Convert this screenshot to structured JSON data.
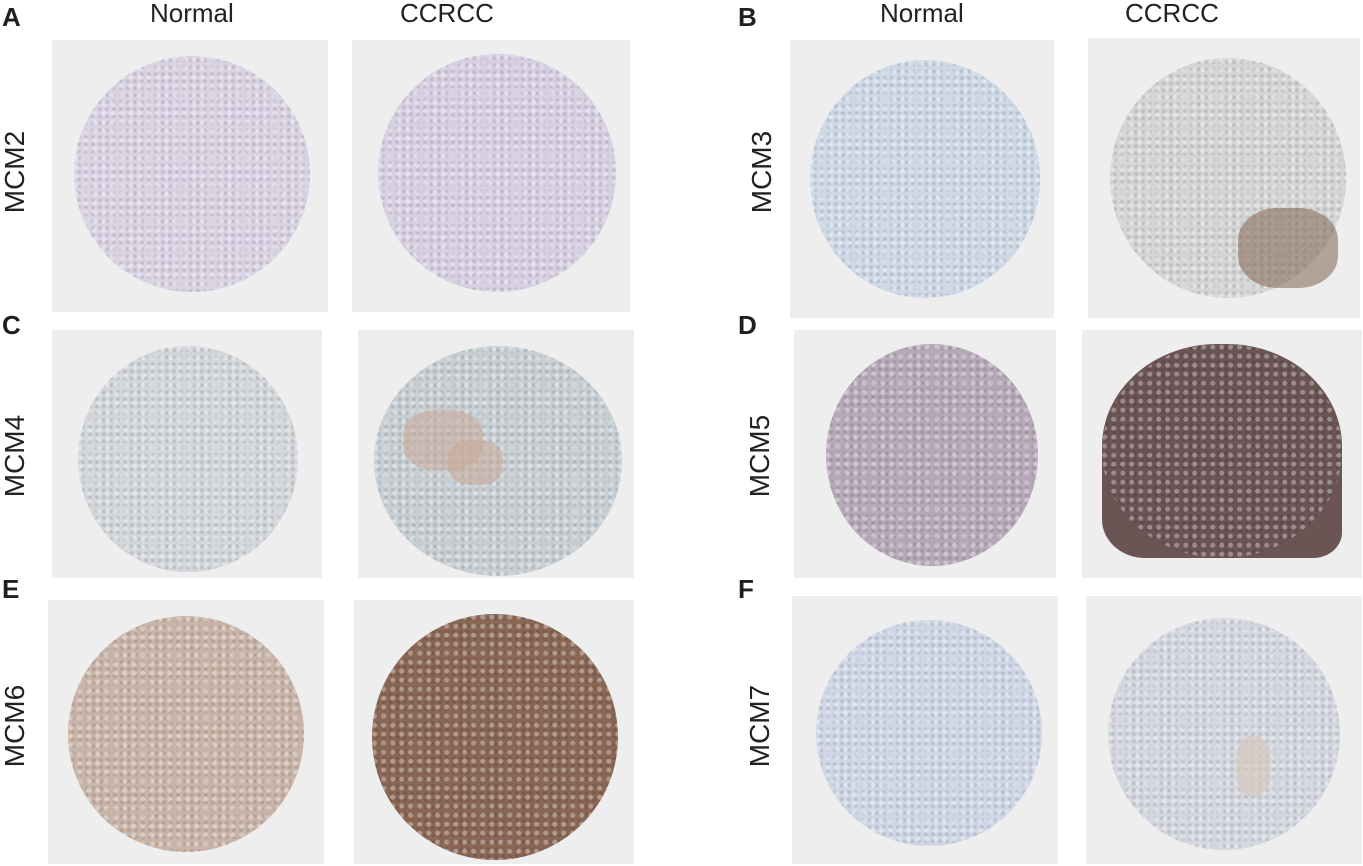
{
  "panels": [
    {
      "letter": "A",
      "marker": "MCM2"
    },
    {
      "letter": "B",
      "marker": "MCM3"
    },
    {
      "letter": "C",
      "marker": "MCM4"
    },
    {
      "letter": "D",
      "marker": "MCM5"
    },
    {
      "letter": "E",
      "marker": "MCM6"
    },
    {
      "letter": "F",
      "marker": "MCM7"
    }
  ],
  "column_headers": {
    "normal": "Normal",
    "tumor": "CCRCC"
  },
  "stain_colors": {
    "mcm2_normal": "#d9d3e4",
    "mcm2_tumor": "#d7d0e2",
    "mcm3_normal": "#cdd9e6",
    "mcm3_tumor": "#d4d6d6",
    "mcm4_normal": "#d3d6da",
    "mcm4_tumor": "#c7cfd4",
    "mcm5_normal": "#b6a8b8",
    "mcm5_tumor": "#6b5454",
    "mcm6_normal": "#c9b5a8",
    "mcm6_tumor": "#8a6654",
    "mcm7_normal": "#cfd6e6",
    "mcm7_tumor": "#d4d7df"
  }
}
